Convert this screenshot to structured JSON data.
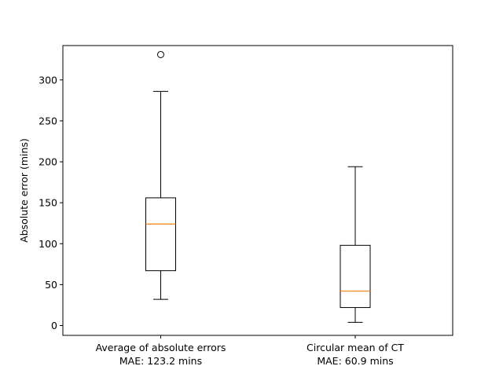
{
  "chart_data": {
    "type": "box",
    "title": "",
    "xlabel": "",
    "ylabel": "Absolute error (mins)",
    "ylim": [
      -12,
      342
    ],
    "yticks": [
      0,
      50,
      100,
      150,
      200,
      250,
      300
    ],
    "grid": false,
    "colors": {
      "box": "#000000",
      "median": "#ff7f0e",
      "background": "#ffffff"
    },
    "boxes": [
      {
        "label_line1": "Average of absolute errors",
        "label_line2": "MAE: 123.2 mins",
        "whisker_low": 32,
        "q1": 67,
        "median": 124,
        "q3": 156,
        "whisker_high": 286,
        "outliers": [
          331
        ]
      },
      {
        "label_line1": "Circular mean of CT",
        "label_line2": "MAE: 60.9 mins",
        "whisker_low": 4,
        "q1": 22,
        "median": 42,
        "q3": 98,
        "whisker_high": 194,
        "outliers": []
      }
    ]
  }
}
